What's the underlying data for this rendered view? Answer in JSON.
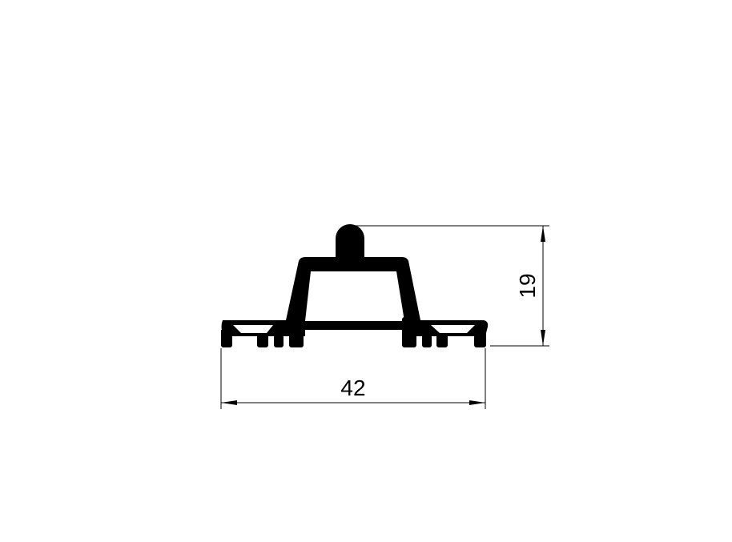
{
  "drawing": {
    "dimensions": {
      "width_label": "42",
      "height_label": "19"
    },
    "colors": {
      "background": "#ffffff",
      "profile_fill": "#000000",
      "line": "#000000"
    }
  }
}
